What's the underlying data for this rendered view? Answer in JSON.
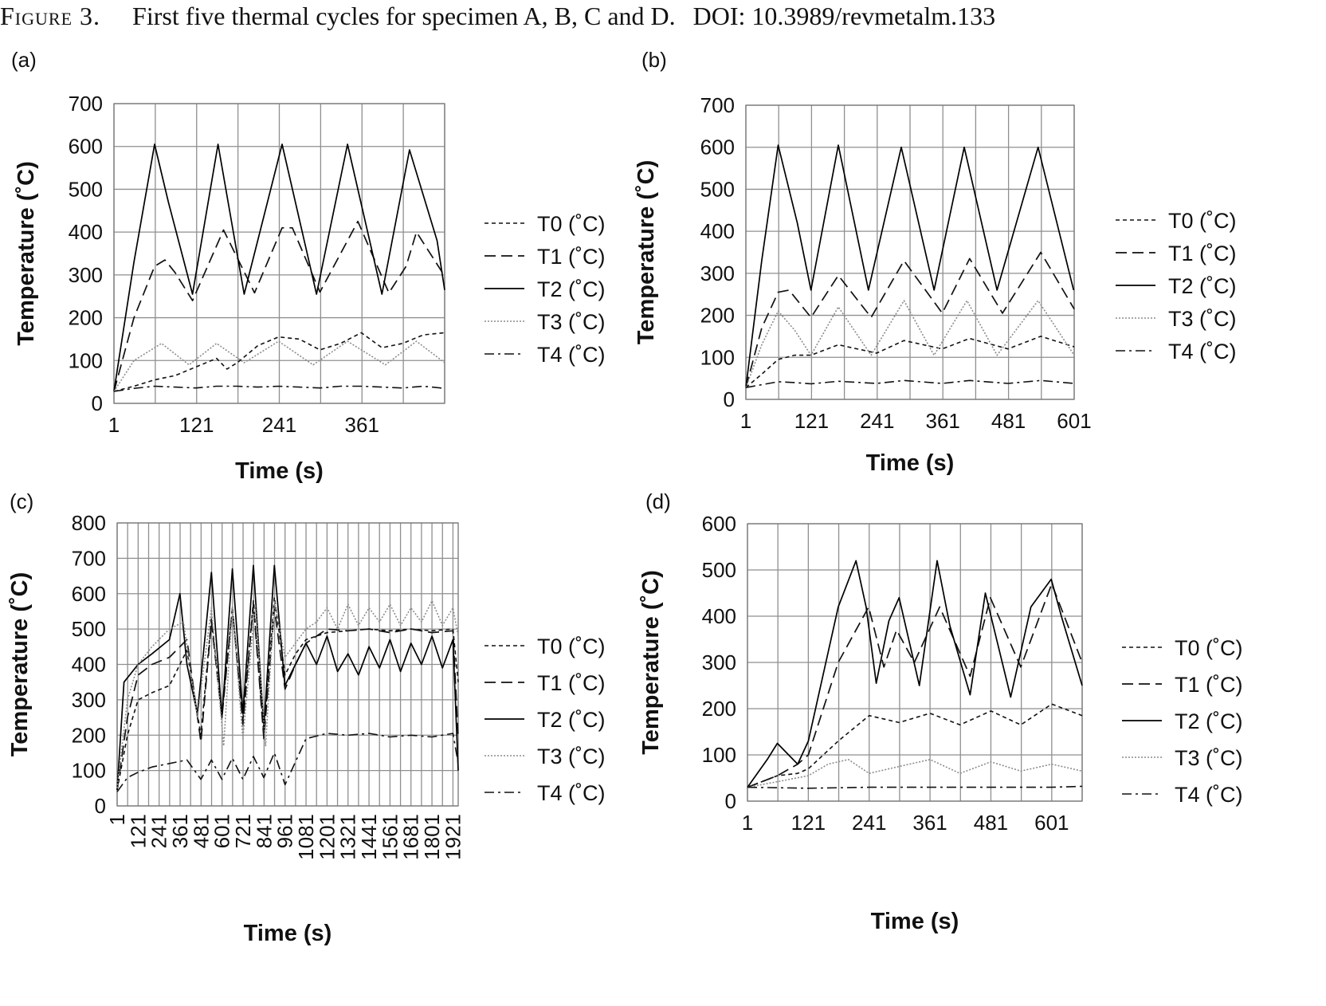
{
  "caption": {
    "figure_label": "Figure 3.",
    "text": "First five thermal cycles for specimen A, B, C and D.",
    "doi": "DOI: 10.3989/revmetalm.133"
  },
  "colors": {
    "T0": "#111111",
    "T1": "#111111",
    "T2": "#000000",
    "T3": "#8c8c8c",
    "T4": "#111111",
    "grid": "#8f8f8f"
  },
  "chart_data": [
    {
      "panel": "(a)",
      "type": "line",
      "xlabel": "Time (s)",
      "ylabel": "Temperature (˚C)",
      "xlim": [
        1,
        481
      ],
      "ylim": [
        0,
        700
      ],
      "x_ticks": [
        1,
        121,
        241,
        361
      ],
      "x_tick_labels": [
        "1",
        "121",
        "241",
        "361"
      ],
      "y_ticks": [
        0,
        100,
        200,
        300,
        400,
        500,
        600,
        700
      ],
      "x_grid_step": 60,
      "grid": true,
      "legend": "right",
      "series": [
        {
          "name": "T0 (˚C)",
          "style": "dotted",
          "x": [
            1,
            30,
            60,
            90,
            120,
            150,
            165,
            180,
            210,
            240,
            270,
            300,
            330,
            360,
            390,
            420,
            450,
            481
          ],
          "y": [
            28,
            40,
            55,
            65,
            85,
            105,
            80,
            95,
            135,
            155,
            150,
            125,
            140,
            165,
            130,
            140,
            160,
            165
          ]
        },
        {
          "name": "T1 (˚C)",
          "style": "dashed",
          "x": [
            1,
            30,
            60,
            75,
            90,
            115,
            160,
            205,
            245,
            260,
            300,
            355,
            400,
            425,
            440,
            480
          ],
          "y": [
            28,
            200,
            320,
            335,
            305,
            240,
            405,
            258,
            410,
            410,
            260,
            425,
            258,
            320,
            400,
            300
          ]
        },
        {
          "name": "T2 (˚C)",
          "style": "solid",
          "x": [
            1,
            30,
            60,
            80,
            115,
            152,
            190,
            245,
            295,
            340,
            390,
            430,
            470,
            481
          ],
          "y": [
            28,
            330,
            605,
            470,
            255,
            605,
            255,
            605,
            255,
            605,
            255,
            592,
            380,
            265
          ]
        },
        {
          "name": "T3 (˚C)",
          "style": "dotted-light",
          "x": [
            1,
            30,
            70,
            110,
            150,
            190,
            240,
            290,
            340,
            395,
            440,
            481
          ],
          "y": [
            28,
            100,
            140,
            90,
            140,
            95,
            145,
            90,
            145,
            90,
            145,
            95
          ]
        },
        {
          "name": "T4 (˚C)",
          "style": "dashdot",
          "x": [
            1,
            30,
            60,
            90,
            120,
            150,
            180,
            210,
            240,
            270,
            300,
            330,
            360,
            390,
            420,
            450,
            481
          ],
          "y": [
            28,
            35,
            40,
            38,
            36,
            40,
            40,
            38,
            40,
            38,
            36,
            40,
            40,
            38,
            36,
            40,
            35
          ]
        }
      ]
    },
    {
      "panel": "(b)",
      "type": "line",
      "xlabel": "Time (s)",
      "ylabel": "Temperature (˚C)",
      "xlim": [
        1,
        601
      ],
      "ylim": [
        0,
        700
      ],
      "x_ticks": [
        1,
        121,
        241,
        361,
        481,
        601
      ],
      "x_tick_labels": [
        "1",
        "121",
        "241",
        "361",
        "481",
        "601"
      ],
      "y_ticks": [
        0,
        100,
        200,
        300,
        400,
        500,
        600,
        700
      ],
      "x_grid_step": 60,
      "grid": true,
      "legend": "right",
      "series": [
        {
          "name": "T0 (˚C)",
          "style": "dotted",
          "x": [
            1,
            30,
            60,
            90,
            120,
            170,
            240,
            290,
            360,
            410,
            480,
            540,
            601
          ],
          "y": [
            28,
            60,
            95,
            105,
            105,
            130,
            110,
            140,
            120,
            145,
            120,
            150,
            125
          ]
        },
        {
          "name": "T1 (˚C)",
          "style": "dashed",
          "x": [
            1,
            30,
            60,
            80,
            120,
            170,
            230,
            290,
            360,
            410,
            470,
            540,
            601
          ],
          "y": [
            28,
            170,
            255,
            260,
            195,
            295,
            195,
            330,
            205,
            335,
            205,
            350,
            215
          ]
        },
        {
          "name": "T2 (˚C)",
          "style": "solid",
          "x": [
            1,
            30,
            60,
            95,
            120,
            170,
            225,
            285,
            345,
            400,
            460,
            535,
            600
          ],
          "y": [
            28,
            330,
            605,
            420,
            260,
            605,
            260,
            600,
            260,
            600,
            260,
            600,
            260
          ]
        },
        {
          "name": "T3 (˚C)",
          "style": "dotted-light",
          "x": [
            1,
            30,
            60,
            90,
            120,
            170,
            230,
            290,
            345,
            405,
            460,
            535,
            601
          ],
          "y": [
            28,
            130,
            210,
            165,
            105,
            220,
            105,
            235,
            105,
            235,
            105,
            235,
            105
          ]
        },
        {
          "name": "T4 (˚C)",
          "style": "dashdot",
          "x": [
            1,
            30,
            60,
            90,
            120,
            170,
            240,
            290,
            360,
            410,
            480,
            540,
            601
          ],
          "y": [
            28,
            35,
            42,
            40,
            37,
            43,
            38,
            45,
            38,
            45,
            38,
            45,
            38
          ]
        }
      ]
    },
    {
      "panel": "(c)",
      "type": "line",
      "xlabel": "Time (s)",
      "ylabel": "Temperature (˚C)",
      "xlim": [
        1,
        1951
      ],
      "ylim": [
        0,
        800
      ],
      "x_ticks": [
        1,
        121,
        241,
        361,
        481,
        601,
        721,
        841,
        961,
        1081,
        1201,
        1321,
        1441,
        1561,
        1681,
        1801,
        1921
      ],
      "x_tick_labels": [
        "1",
        "121",
        "241",
        "361",
        "481",
        "601",
        "721",
        "841",
        "961",
        "1081",
        "1201",
        "1321",
        "1441",
        "1561",
        "1681",
        "1801",
        "1921"
      ],
      "y_ticks": [
        0,
        100,
        200,
        300,
        400,
        500,
        600,
        700,
        800
      ],
      "x_grid_step": 60,
      "grid": true,
      "legend": "right",
      "series": [
        {
          "name": "T0 (˚C)",
          "style": "dotted",
          "x": [
            1,
            60,
            121,
            200,
            300,
            400,
            480,
            540,
            600,
            660,
            720,
            780,
            840,
            900,
            961,
            1021,
            1081,
            1201,
            1321,
            1441,
            1561,
            1681,
            1801,
            1921,
            1951
          ],
          "y": [
            45,
            200,
            300,
            320,
            340,
            440,
            200,
            530,
            260,
            560,
            240,
            580,
            200,
            590,
            370,
            430,
            470,
            490,
            495,
            500,
            495,
            500,
            495,
            500,
            350
          ]
        },
        {
          "name": "T1 (˚C)",
          "style": "dashed",
          "x": [
            1,
            60,
            121,
            200,
            300,
            400,
            480,
            540,
            600,
            660,
            720,
            780,
            840,
            900,
            961,
            1021,
            1081,
            1201,
            1321,
            1441,
            1561,
            1681,
            1801,
            1921,
            1951
          ],
          "y": [
            45,
            250,
            370,
            400,
            420,
            470,
            180,
            520,
            250,
            560,
            230,
            570,
            190,
            560,
            330,
            400,
            460,
            500,
            495,
            500,
            490,
            500,
            490,
            495,
            190
          ]
        },
        {
          "name": "T2 (˚C)",
          "style": "solid",
          "x": [
            1,
            40,
            121,
            200,
            300,
            360,
            400,
            460,
            540,
            600,
            660,
            720,
            780,
            840,
            900,
            960,
            1081,
            1141,
            1201,
            1261,
            1321,
            1381,
            1441,
            1501,
            1561,
            1621,
            1681,
            1741,
            1801,
            1861,
            1921,
            1951
          ],
          "y": [
            45,
            350,
            400,
            430,
            470,
            600,
            400,
            260,
            660,
            250,
            670,
            260,
            680,
            220,
            680,
            340,
            460,
            400,
            480,
            380,
            430,
            370,
            450,
            390,
            470,
            380,
            460,
            400,
            480,
            390,
            470,
            100
          ]
        },
        {
          "name": "T3 (˚C)",
          "style": "dotted-light",
          "x": [
            1,
            60,
            121,
            200,
            300,
            380,
            460,
            540,
            610,
            660,
            720,
            790,
            850,
            900,
            960,
            1081,
            1141,
            1201,
            1261,
            1321,
            1381,
            1441,
            1501,
            1561,
            1621,
            1681,
            1741,
            1801,
            1861,
            1921,
            1951
          ],
          "y": [
            50,
            300,
            400,
            450,
            500,
            520,
            250,
            560,
            170,
            560,
            190,
            570,
            170,
            580,
            420,
            500,
            520,
            560,
            500,
            570,
            510,
            560,
            520,
            570,
            510,
            560,
            520,
            580,
            510,
            560,
            480
          ]
        },
        {
          "name": "T4 (˚C)",
          "style": "dashdot",
          "x": [
            1,
            60,
            121,
            200,
            300,
            400,
            480,
            540,
            600,
            660,
            720,
            780,
            840,
            900,
            961,
            1081,
            1201,
            1321,
            1441,
            1561,
            1681,
            1801,
            1921,
            1951
          ],
          "y": [
            40,
            80,
            95,
            110,
            120,
            130,
            75,
            130,
            75,
            135,
            75,
            140,
            80,
            150,
            60,
            190,
            205,
            200,
            205,
            195,
            200,
            195,
            205,
            120
          ]
        }
      ]
    },
    {
      "panel": "(d)",
      "type": "line",
      "xlabel": "Time (s)",
      "ylabel": "Temperature (˚C)",
      "xlim": [
        1,
        661
      ],
      "ylim": [
        0,
        600
      ],
      "x_ticks": [
        1,
        121,
        241,
        361,
        481,
        601
      ],
      "x_tick_labels": [
        "1",
        "121",
        "241",
        "361",
        "481",
        "601"
      ],
      "y_ticks": [
        0,
        100,
        200,
        300,
        400,
        500,
        600
      ],
      "x_grid_step": 60,
      "grid": true,
      "legend": "right",
      "series": [
        {
          "name": "T0 (˚C)",
          "style": "dotted",
          "x": [
            1,
            60,
            100,
            121,
            180,
            241,
            300,
            361,
            420,
            481,
            540,
            601,
            661
          ],
          "y": [
            30,
            55,
            60,
            70,
            130,
            185,
            170,
            190,
            165,
            195,
            165,
            210,
            185
          ]
        },
        {
          "name": "T1 (˚C)",
          "style": "dashed",
          "x": [
            1,
            60,
            100,
            121,
            180,
            240,
            270,
            295,
            330,
            380,
            440,
            480,
            540,
            601,
            661
          ],
          "y": [
            30,
            55,
            80,
            100,
            300,
            420,
            290,
            370,
            300,
            420,
            270,
            440,
            290,
            470,
            300
          ]
        },
        {
          "name": "T2 (˚C)",
          "style": "solid",
          "x": [
            1,
            40,
            60,
            100,
            121,
            180,
            215,
            235,
            255,
            280,
            300,
            340,
            375,
            400,
            440,
            470,
            520,
            560,
            600,
            620,
            661
          ],
          "y": [
            30,
            90,
            125,
            80,
            130,
            420,
            520,
            420,
            255,
            390,
            440,
            250,
            520,
            380,
            230,
            450,
            225,
            420,
            480,
            400,
            250
          ]
        },
        {
          "name": "T3 (˚C)",
          "style": "dotted-light",
          "x": [
            1,
            60,
            121,
            160,
            200,
            241,
            300,
            361,
            420,
            481,
            540,
            601,
            661
          ],
          "y": [
            30,
            42,
            55,
            80,
            90,
            60,
            75,
            90,
            60,
            85,
            65,
            80,
            65
          ]
        },
        {
          "name": "T4 (˚C)",
          "style": "dashdot",
          "x": [
            1,
            121,
            241,
            361,
            481,
            601,
            661
          ],
          "y": [
            30,
            28,
            30,
            30,
            30,
            30,
            32
          ]
        }
      ]
    }
  ]
}
